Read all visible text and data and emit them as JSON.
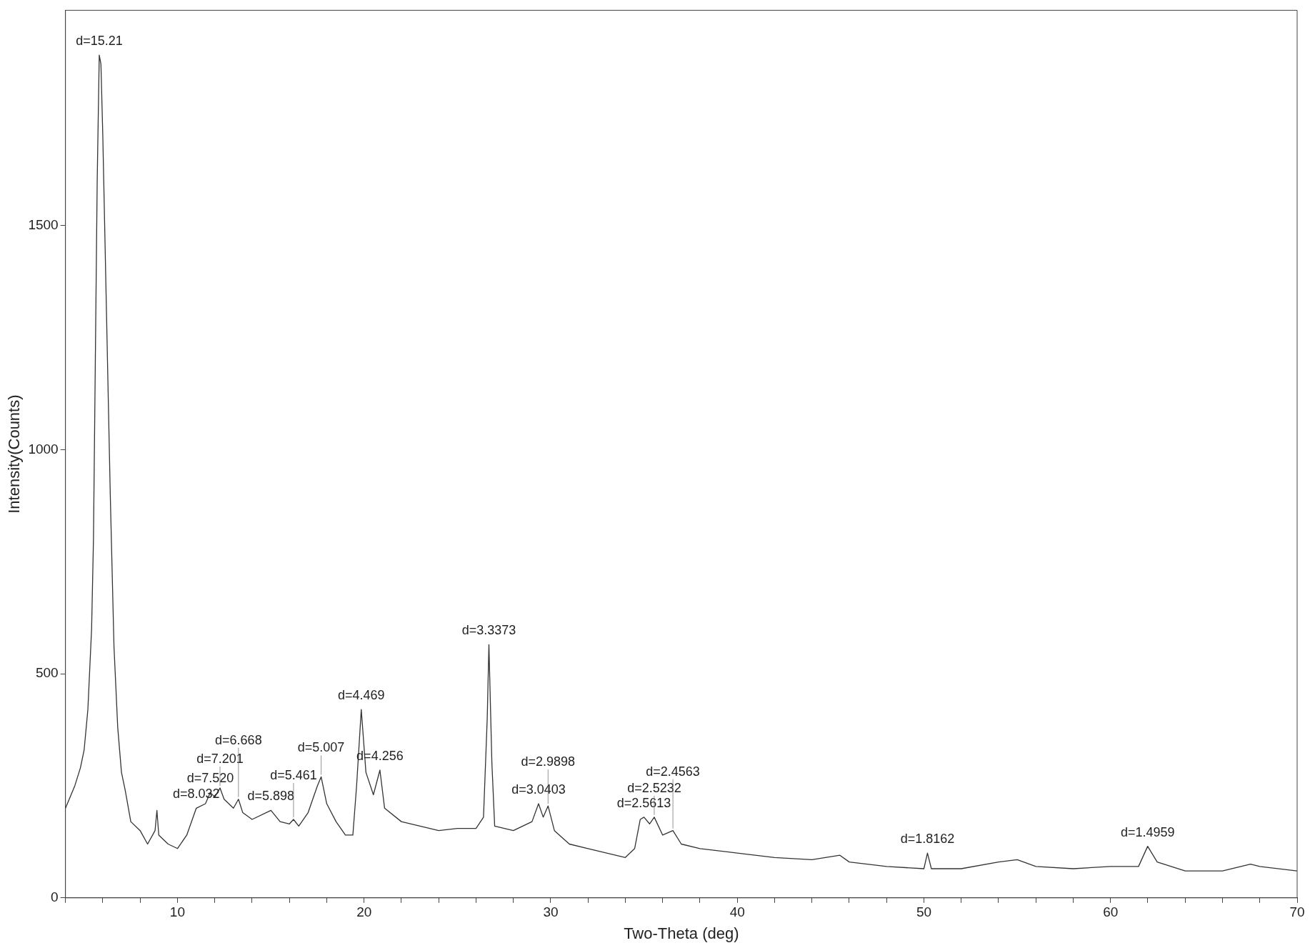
{
  "chart_data": {
    "type": "line",
    "xlabel": "Two-Theta (deg)",
    "ylabel": "Intensity(Counts)",
    "xlim": [
      4,
      70
    ],
    "ylim": [
      0,
      1980
    ],
    "xticks": [
      {
        "value": 4,
        "label": null
      },
      {
        "value": 6,
        "label": null
      },
      {
        "value": 8,
        "label": null
      },
      10,
      {
        "value": 12,
        "label": null
      },
      {
        "value": 14,
        "label": null
      },
      {
        "value": 16,
        "label": null
      },
      {
        "value": 18,
        "label": null
      },
      20,
      {
        "value": 22,
        "label": null
      },
      {
        "value": 24,
        "label": null
      },
      {
        "value": 26,
        "label": null
      },
      {
        "value": 28,
        "label": null
      },
      30,
      {
        "value": 32,
        "label": null
      },
      {
        "value": 34,
        "label": null
      },
      {
        "value": 36,
        "label": null
      },
      {
        "value": 38,
        "label": null
      },
      40,
      {
        "value": 42,
        "label": null
      },
      {
        "value": 44,
        "label": null
      },
      {
        "value": 46,
        "label": null
      },
      {
        "value": 48,
        "label": null
      },
      50,
      {
        "value": 52,
        "label": null
      },
      {
        "value": 54,
        "label": null
      },
      {
        "value": 56,
        "label": null
      },
      {
        "value": 58,
        "label": null
      },
      60,
      {
        "value": 62,
        "label": null
      },
      {
        "value": 64,
        "label": null
      },
      {
        "value": 66,
        "label": null
      },
      {
        "value": 68,
        "label": null
      },
      70
    ],
    "yticks": [
      0,
      500,
      1000,
      1500
    ],
    "grid": false,
    "legend": false,
    "marker": "none",
    "line_style": "solid",
    "series": [
      {
        "color": "#333333",
        "x": [
          4.0,
          4.5,
          4.8,
          5.0,
          5.2,
          5.4,
          5.5,
          5.6,
          5.7,
          5.81,
          5.9,
          6.0,
          6.2,
          6.4,
          6.6,
          6.8,
          7.0,
          7.2,
          7.5,
          8.0,
          8.4,
          8.8,
          8.9,
          9.0,
          9.5,
          10.0,
          10.5,
          11.01,
          11.5,
          11.76,
          12.0,
          12.28,
          12.5,
          13.0,
          13.27,
          13.5,
          14.0,
          15.01,
          15.5,
          16.0,
          16.22,
          16.5,
          17.0,
          17.5,
          17.7,
          18.0,
          18.5,
          19.0,
          19.4,
          19.6,
          19.85,
          20.1,
          20.5,
          20.85,
          21.1,
          22,
          23,
          24,
          25,
          26,
          26.4,
          26.6,
          26.69,
          26.85,
          27.0,
          28,
          29,
          29.35,
          29.6,
          29.86,
          30.2,
          31,
          32,
          33,
          34,
          34.5,
          34.8,
          35.0,
          35.3,
          35.55,
          36,
          36.55,
          37,
          38,
          40,
          42,
          44,
          45.5,
          46,
          48,
          50,
          50.19,
          50.4,
          52,
          54,
          55,
          56,
          58,
          60,
          61.5,
          61.99,
          62.5,
          64,
          66,
          67.5,
          68,
          70
        ],
        "values": [
          200,
          250,
          290,
          330,
          420,
          600,
          800,
          1200,
          1600,
          1880,
          1860,
          1700,
          1300,
          900,
          560,
          380,
          280,
          240,
          170,
          150,
          120,
          150,
          195,
          140,
          120,
          110,
          140,
          200,
          210,
          235,
          225,
          245,
          220,
          200,
          220,
          190,
          175,
          195,
          170,
          165,
          175,
          160,
          190,
          250,
          270,
          210,
          170,
          140,
          140,
          250,
          420,
          280,
          230,
          285,
          200,
          170,
          160,
          150,
          155,
          155,
          180,
          400,
          565,
          300,
          160,
          150,
          170,
          210,
          180,
          205,
          150,
          120,
          110,
          100,
          90,
          110,
          175,
          180,
          165,
          180,
          140,
          150,
          120,
          110,
          100,
          90,
          85,
          95,
          80,
          70,
          65,
          100,
          65,
          65,
          80,
          85,
          70,
          65,
          70,
          70,
          115,
          80,
          60,
          60,
          75,
          70,
          60
        ]
      }
    ],
    "annotations": [
      {
        "text": "d=15.21",
        "x": 5.81,
        "y": 1880
      },
      {
        "text": "d=8.032",
        "x": 11.01,
        "y": 200
      },
      {
        "text": "d=7.520",
        "x": 11.76,
        "y": 235
      },
      {
        "text": "d=7.201",
        "x": 12.28,
        "y": 245
      },
      {
        "text": "d=6.668",
        "x": 13.27,
        "y": 220
      },
      {
        "text": "d=5.898",
        "x": 15.01,
        "y": 195
      },
      {
        "text": "d=5.461",
        "x": 16.22,
        "y": 175
      },
      {
        "text": "d=5.007",
        "x": 17.7,
        "y": 270
      },
      {
        "text": "d=4.469",
        "x": 19.85,
        "y": 420
      },
      {
        "text": "d=4.256",
        "x": 20.85,
        "y": 285
      },
      {
        "text": "d=3.3373",
        "x": 26.69,
        "y": 565
      },
      {
        "text": "d=3.0403",
        "x": 29.35,
        "y": 210
      },
      {
        "text": "d=2.9898",
        "x": 29.86,
        "y": 205
      },
      {
        "text": "d=2.5613",
        "x": 35.0,
        "y": 180
      },
      {
        "text": "d=2.5232",
        "x": 35.55,
        "y": 180
      },
      {
        "text": "d=2.4563",
        "x": 36.55,
        "y": 150
      },
      {
        "text": "d=1.8162",
        "x": 50.19,
        "y": 100
      },
      {
        "text": "d=1.4959",
        "x": 61.99,
        "y": 115
      }
    ]
  }
}
